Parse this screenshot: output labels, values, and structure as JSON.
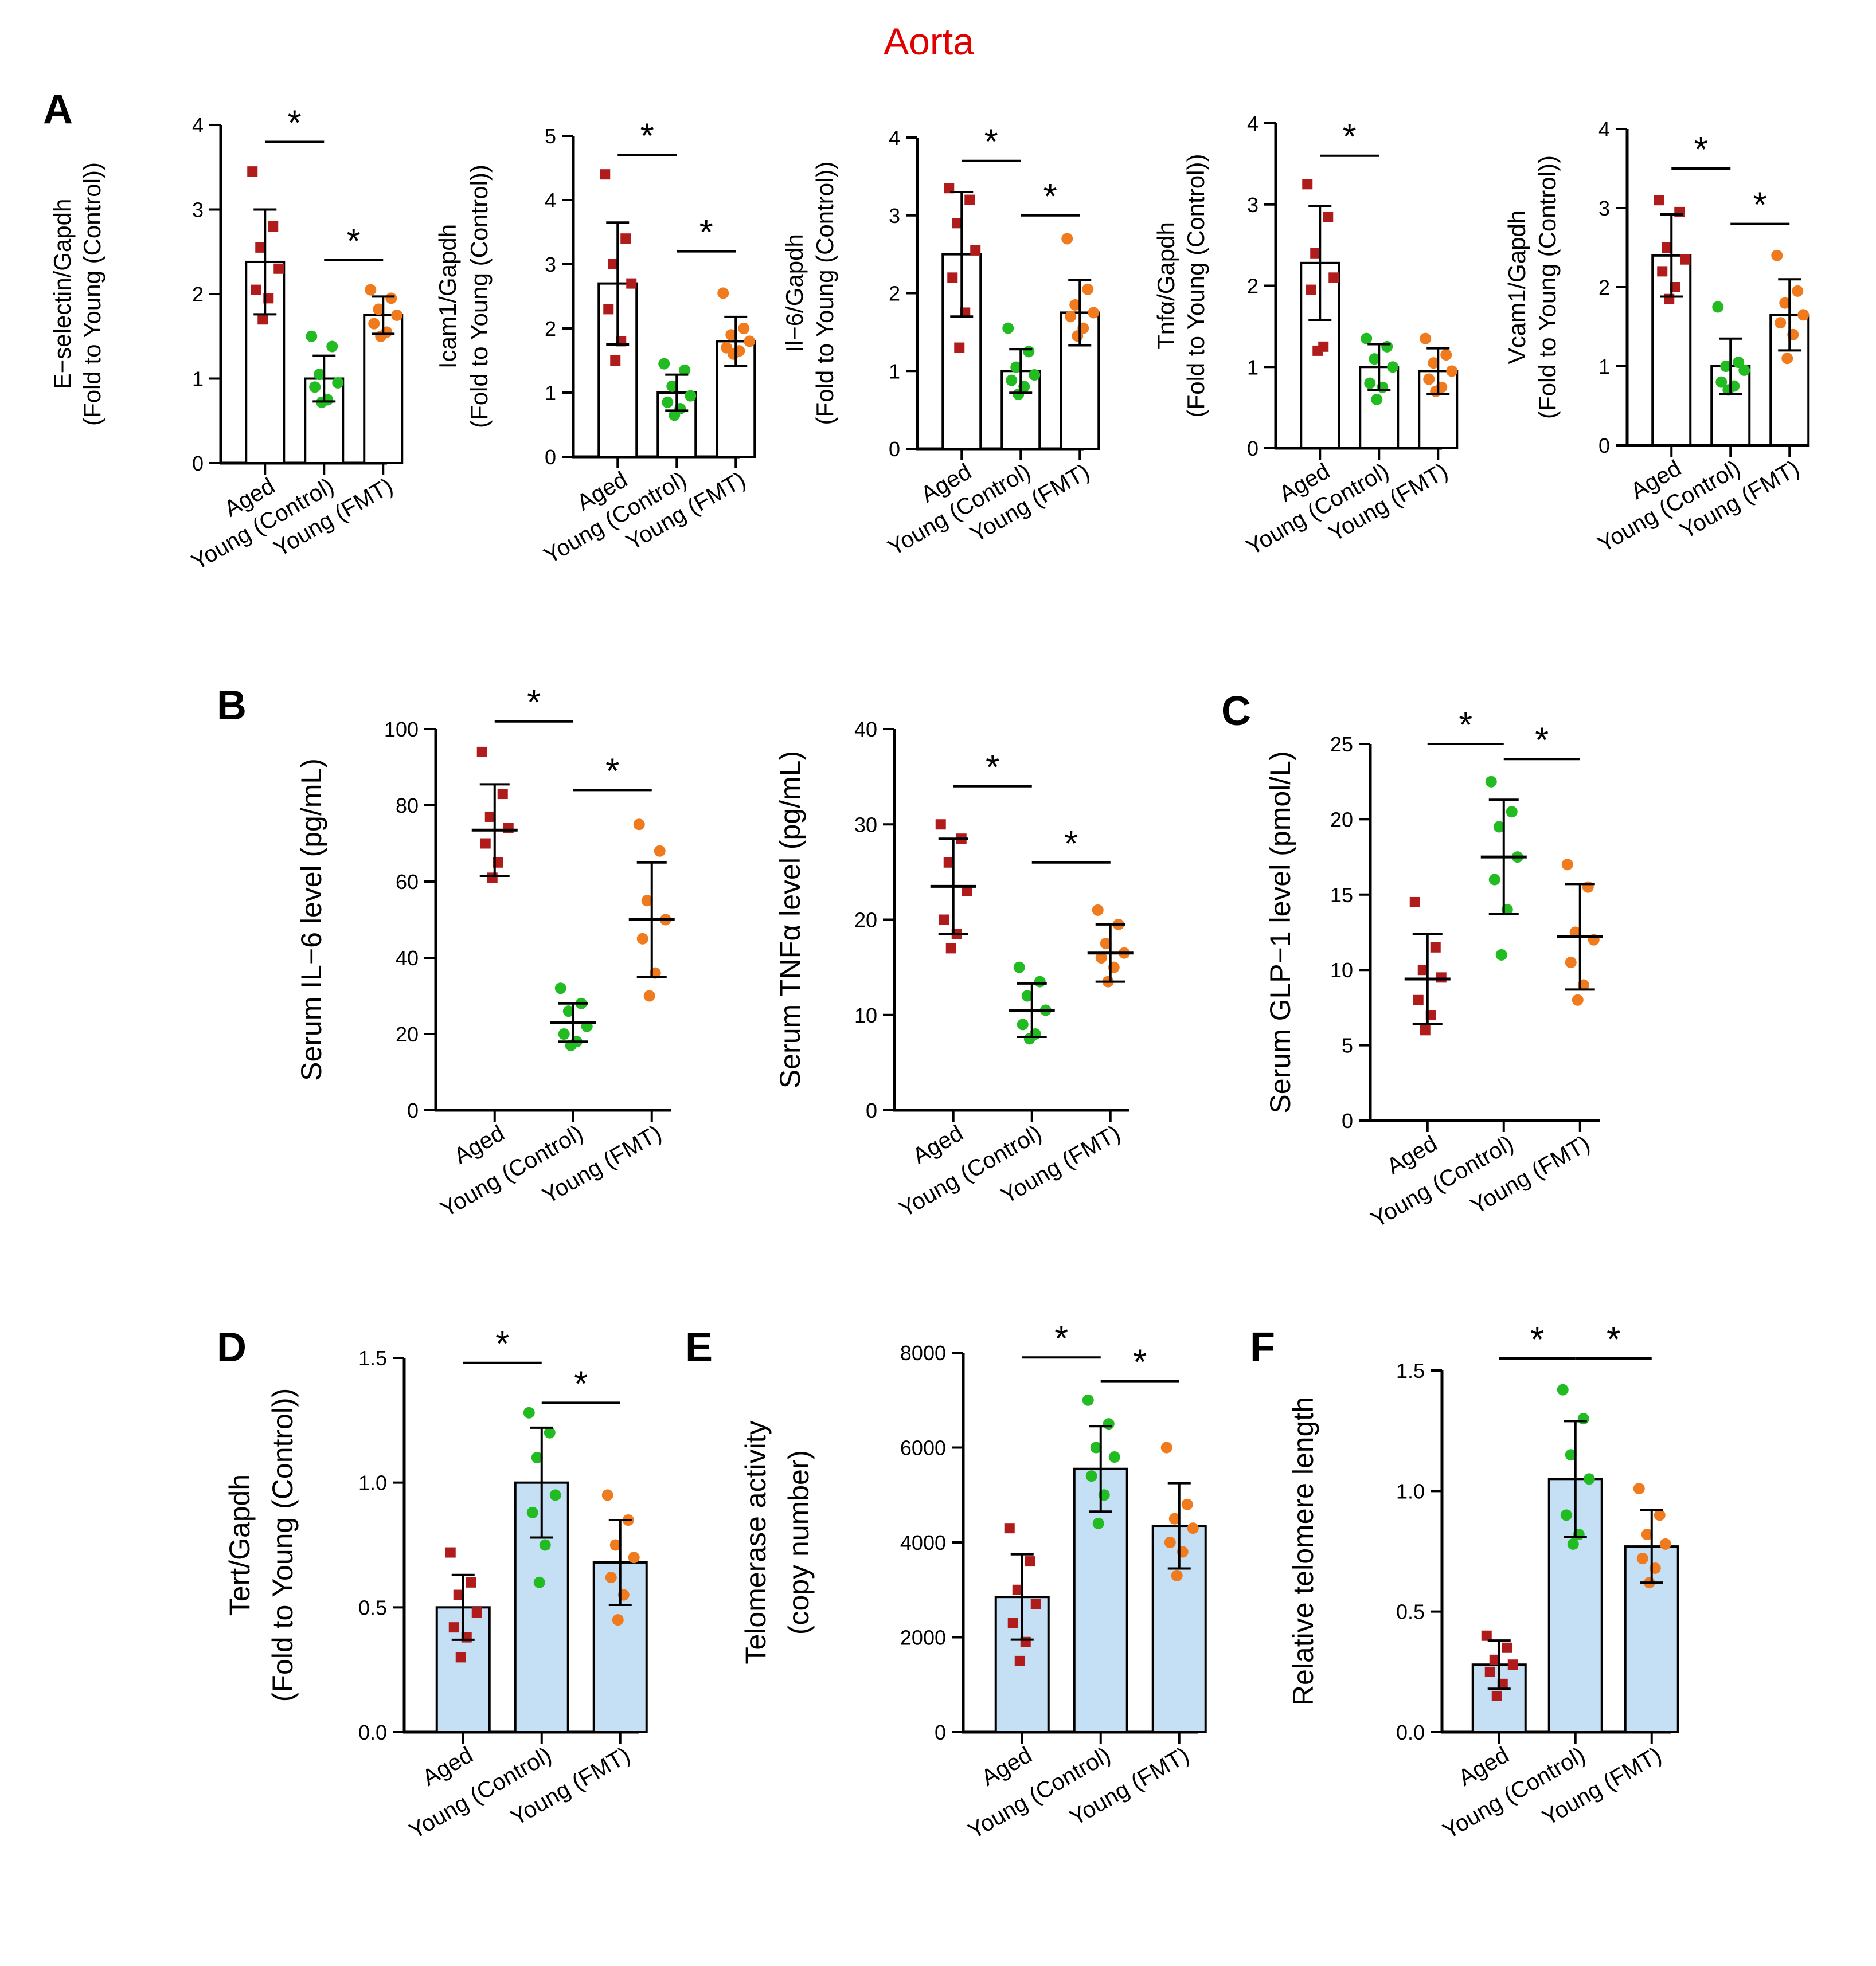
{
  "title": "Aorta",
  "colors": {
    "aged": "#b01c1c",
    "young_control": "#22bb22",
    "young_fmt": "#f07a1e",
    "blue_fill": "#c5dff5",
    "white_fill": "#ffffff"
  },
  "groups": [
    "Aged",
    "Young (Control)",
    "Young (FMT)"
  ],
  "chart_data": [
    {
      "panel": "A",
      "type": "bar",
      "ylabel": [
        "E−selectin/Gapdh",
        "(Fold to Young (Control))"
      ],
      "ylim": [
        0,
        4
      ],
      "yticks": [
        "0",
        "1",
        "2",
        "3",
        "4"
      ],
      "fill": "white",
      "means": [
        2.38,
        1.0,
        1.75
      ],
      "errors": [
        0.62,
        0.27,
        0.22
      ],
      "points": [
        [
          3.45,
          2.8,
          2.55,
          2.3,
          2.05,
          1.95,
          1.7
        ],
        [
          1.5,
          1.38,
          1.05,
          0.95,
          0.9,
          0.75,
          0.72
        ],
        [
          2.05,
          1.95,
          1.82,
          1.75,
          1.65,
          1.55,
          1.5
        ]
      ],
      "sig": [
        {
          "from": 0,
          "to": 1,
          "y": 3.8
        },
        {
          "from": 1,
          "to": 2,
          "y": 2.4
        }
      ]
    },
    {
      "panel": "A2",
      "type": "bar",
      "ylabel": [
        "Icam1/Gapdh",
        "(Fold to Young (Control))"
      ],
      "ylim": [
        0,
        5
      ],
      "yticks": [
        "0",
        "1",
        "2",
        "3",
        "4",
        "5"
      ],
      "fill": "white",
      "means": [
        2.7,
        1.0,
        1.8
      ],
      "errors": [
        0.95,
        0.28,
        0.38
      ],
      "points": [
        [
          4.4,
          3.4,
          3.0,
          2.7,
          2.3,
          1.8,
          1.5
        ],
        [
          1.45,
          1.35,
          1.1,
          0.95,
          0.85,
          0.75,
          0.65
        ],
        [
          2.55,
          2.0,
          1.9,
          1.8,
          1.7,
          1.65,
          1.6
        ]
      ],
      "sig": [
        {
          "from": 0,
          "to": 1,
          "y": 4.7
        },
        {
          "from": 1,
          "to": 2,
          "y": 3.2
        }
      ]
    },
    {
      "panel": "A3",
      "type": "bar",
      "ylabel": [
        "Il−6/Gapdh",
        "(Fold to Young (Control))"
      ],
      "ylim": [
        0,
        4
      ],
      "yticks": [
        "0",
        "1",
        "2",
        "3",
        "4"
      ],
      "fill": "white",
      "means": [
        2.5,
        1.0,
        1.75
      ],
      "errors": [
        0.8,
        0.28,
        0.42
      ],
      "points": [
        [
          3.35,
          3.2,
          2.9,
          2.55,
          2.2,
          1.75,
          1.3
        ],
        [
          1.55,
          1.25,
          1.05,
          0.95,
          0.88,
          0.8,
          0.7
        ],
        [
          2.7,
          2.05,
          1.85,
          1.75,
          1.7,
          1.55,
          1.45
        ]
      ],
      "sig": [
        {
          "from": 0,
          "to": 1,
          "y": 3.7
        },
        {
          "from": 1,
          "to": 2,
          "y": 3.0
        }
      ]
    },
    {
      "panel": "A4",
      "type": "bar",
      "ylabel": [
        "Tnfα/Gapdh",
        "(Fold to Young (Control))"
      ],
      "ylim": [
        0,
        4
      ],
      "yticks": [
        "0",
        "1",
        "2",
        "3",
        "4"
      ],
      "fill": "white",
      "means": [
        2.28,
        1.0,
        0.95
      ],
      "errors": [
        0.7,
        0.28,
        0.28
      ],
      "points": [
        [
          3.25,
          2.85,
          2.4,
          2.1,
          1.95,
          1.25,
          1.2
        ],
        [
          1.35,
          1.25,
          1.1,
          1.0,
          0.8,
          0.75,
          0.6
        ],
        [
          1.35,
          1.15,
          1.05,
          0.95,
          0.85,
          0.75,
          0.7
        ]
      ],
      "sig": [
        {
          "from": 0,
          "to": 1,
          "y": 3.6
        }
      ]
    },
    {
      "panel": "A5",
      "type": "bar",
      "ylabel": [
        "Vcam1/Gapdh",
        "(Fold to Young (Control))"
      ],
      "ylim": [
        0,
        4
      ],
      "yticks": [
        "0",
        "1",
        "2",
        "3",
        "4"
      ],
      "fill": "white",
      "means": [
        2.4,
        1.0,
        1.65
      ],
      "errors": [
        0.52,
        0.35,
        0.45
      ],
      "points": [
        [
          3.1,
          2.95,
          2.5,
          2.35,
          2.2,
          2.0,
          1.85
        ],
        [
          1.75,
          1.05,
          1.0,
          0.95,
          0.8,
          0.75,
          0.7
        ],
        [
          2.4,
          1.95,
          1.8,
          1.65,
          1.55,
          1.4,
          1.1
        ]
      ],
      "sig": [
        {
          "from": 0,
          "to": 1,
          "y": 3.5
        },
        {
          "from": 1,
          "to": 2,
          "y": 2.8
        }
      ]
    },
    {
      "panel": "B",
      "type": "scatter",
      "ylabel": [
        "Serum IL−6 level (pg/mL)"
      ],
      "ylim": [
        0,
        100
      ],
      "yticks": [
        "0",
        "20",
        "40",
        "60",
        "80",
        "100"
      ],
      "means": [
        73.5,
        23,
        50
      ],
      "errors": [
        12,
        5,
        15
      ],
      "points": [
        [
          94,
          83,
          77,
          74,
          70,
          65,
          61
        ],
        [
          32,
          28,
          26,
          22,
          20,
          18,
          17
        ],
        [
          75,
          68,
          55,
          50,
          45,
          36,
          30
        ]
      ],
      "sig": [
        {
          "from": 0,
          "to": 1,
          "y": 102
        },
        {
          "from": 1,
          "to": 2,
          "y": 84
        }
      ]
    },
    {
      "panel": "B2",
      "type": "scatter",
      "ylabel": [
        "Serum TNFα level (pg/mL)"
      ],
      "ylim": [
        0,
        40
      ],
      "yticks": [
        "0",
        "10",
        "20",
        "30",
        "40"
      ],
      "means": [
        23.5,
        10.5,
        16.5
      ],
      "errors": [
        5,
        2.8,
        3
      ],
      "points": [
        [
          30,
          28.5,
          26,
          23,
          20,
          18.5,
          17
        ],
        [
          15,
          13.5,
          12,
          10.5,
          9,
          8,
          7.5
        ],
        [
          21,
          19.5,
          17.5,
          16.5,
          16,
          15,
          13.5
        ]
      ],
      "sig": [
        {
          "from": 0,
          "to": 1,
          "y": 34
        },
        {
          "from": 1,
          "to": 2,
          "y": 26
        }
      ]
    },
    {
      "panel": "C",
      "type": "scatter",
      "ylabel": [
        "Serum GLP−1 level (pmol/L)"
      ],
      "ylim": [
        0,
        25
      ],
      "yticks": [
        "0",
        "5",
        "10",
        "15",
        "20",
        "25"
      ],
      "means": [
        9.4,
        17.5,
        12.2
      ],
      "errors": [
        3,
        3.8,
        3.5
      ],
      "points": [
        [
          14.5,
          11.5,
          10,
          9.5,
          8,
          7,
          6
        ],
        [
          22.5,
          20.5,
          19.5,
          17.5,
          16,
          14,
          11
        ],
        [
          17,
          15.5,
          12.5,
          12,
          10.5,
          9,
          8
        ]
      ],
      "sig": [
        {
          "from": 0,
          "to": 1,
          "y": 25
        },
        {
          "from": 1,
          "to": 2,
          "y": 24
        }
      ]
    },
    {
      "panel": "D",
      "type": "bar",
      "ylabel": [
        "Tert/Gapdh",
        "(Fold to Young (Control))"
      ],
      "ylim": [
        0,
        1.5
      ],
      "yticks": [
        "0.0",
        "0.5",
        "1.0",
        "1.5"
      ],
      "fill": "blue",
      "means": [
        0.5,
        1.0,
        0.68
      ],
      "errors": [
        0.13,
        0.22,
        0.17
      ],
      "points": [
        [
          0.72,
          0.6,
          0.55,
          0.48,
          0.42,
          0.38,
          0.3
        ],
        [
          1.28,
          1.2,
          1.1,
          0.95,
          0.88,
          0.75,
          0.6
        ],
        [
          0.95,
          0.85,
          0.75,
          0.7,
          0.62,
          0.55,
          0.45
        ]
      ],
      "sig": [
        {
          "from": 0,
          "to": 1,
          "y": 1.48
        },
        {
          "from": 1,
          "to": 2,
          "y": 1.32
        }
      ]
    },
    {
      "panel": "E",
      "type": "bar",
      "ylabel": [
        "Telomerase activity",
        "(copy number)"
      ],
      "ylim": [
        0,
        8000
      ],
      "yticks": [
        "0",
        "2000",
        "4000",
        "6000",
        "8000"
      ],
      "fill": "blue",
      "means": [
        2850,
        5550,
        4350
      ],
      "errors": [
        900,
        900,
        900
      ],
      "points": [
        [
          4300,
          3600,
          3000,
          2700,
          2300,
          1900,
          1500
        ],
        [
          7000,
          6500,
          6000,
          5800,
          5400,
          5000,
          4400
        ],
        [
          6000,
          4800,
          4500,
          4300,
          4000,
          3800,
          3300
        ]
      ],
      "sig": [
        {
          "from": 0,
          "to": 1,
          "y": 7900
        },
        {
          "from": 1,
          "to": 2,
          "y": 7400
        }
      ]
    },
    {
      "panel": "F",
      "type": "bar",
      "ylabel": [
        "Relative telomere length"
      ],
      "ylim": [
        0,
        1.5
      ],
      "yticks": [
        "0.0",
        "0.5",
        "1.0",
        "1.5"
      ],
      "fill": "blue",
      "means": [
        0.28,
        1.05,
        0.77
      ],
      "errors": [
        0.1,
        0.24,
        0.15
      ],
      "points": [
        [
          0.4,
          0.35,
          0.3,
          0.28,
          0.25,
          0.2,
          0.15
        ],
        [
          1.42,
          1.3,
          1.15,
          1.05,
          0.9,
          0.82,
          0.78
        ],
        [
          1.01,
          0.9,
          0.82,
          0.78,
          0.72,
          0.68,
          0.62
        ]
      ],
      "sig": [
        {
          "from": 0,
          "to": 1,
          "y": 1.55
        },
        {
          "from": 1,
          "to": 2,
          "y": 1.55
        }
      ]
    }
  ],
  "panel_labels": [
    "A",
    "B",
    "C",
    "D",
    "E",
    "F"
  ],
  "star": "*"
}
